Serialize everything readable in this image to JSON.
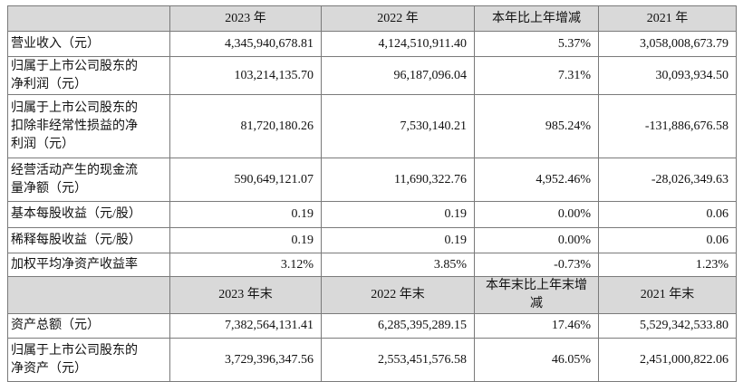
{
  "table": {
    "header": [
      "2023 年",
      "2022 年",
      "本年比上年增减",
      "2021 年"
    ],
    "rows": [
      {
        "label": [
          "营业收入（元）"
        ],
        "cells": [
          "4,345,940,678.81",
          "4,124,510,911.40",
          "5.37%",
          "3,058,008,673.79"
        ]
      },
      {
        "label": [
          "归属于上市公司股东的",
          "净利润（元）"
        ],
        "cells": [
          "103,214,135.70",
          "96,187,096.04",
          "7.31%",
          "30,093,934.50"
        ]
      },
      {
        "label": [
          "归属于上市公司股东的",
          "扣除非经常性损益的净",
          "利润（元）"
        ],
        "cells": [
          "81,720,180.26",
          "7,530,140.21",
          "985.24%",
          "-131,886,676.58"
        ]
      },
      {
        "label": [
          "经营活动产生的现金流",
          "量净额（元）"
        ],
        "cells": [
          "590,649,121.07",
          "11,690,322.76",
          "4,952.46%",
          "-28,026,349.63"
        ]
      },
      {
        "label": [
          "基本每股收益（元/股）"
        ],
        "cells": [
          "0.19",
          "0.19",
          "0.00%",
          "0.06"
        ]
      },
      {
        "label": [
          "稀释每股收益（元/股）"
        ],
        "cells": [
          "0.19",
          "0.19",
          "0.00%",
          "0.06"
        ]
      },
      {
        "label": [
          "加权平均净资产收益率"
        ],
        "cells": [
          "3.12%",
          "3.85%",
          "-0.73%",
          "1.23%"
        ]
      }
    ],
    "subheader": [
      "2023 年末",
      "2022 年末",
      "本年末比上年末增减",
      "2021 年末"
    ],
    "rows2": [
      {
        "label": [
          "资产总额（元）"
        ],
        "cells": [
          "7,382,564,131.41",
          "6,285,395,289.15",
          "17.46%",
          "5,529,342,533.80"
        ]
      },
      {
        "label": [
          "归属于上市公司股东的",
          "净资产（元）"
        ],
        "cells": [
          "3,729,396,347.56",
          "2,553,451,576.58",
          "46.05%",
          "2,451,000,822.06"
        ]
      }
    ]
  }
}
